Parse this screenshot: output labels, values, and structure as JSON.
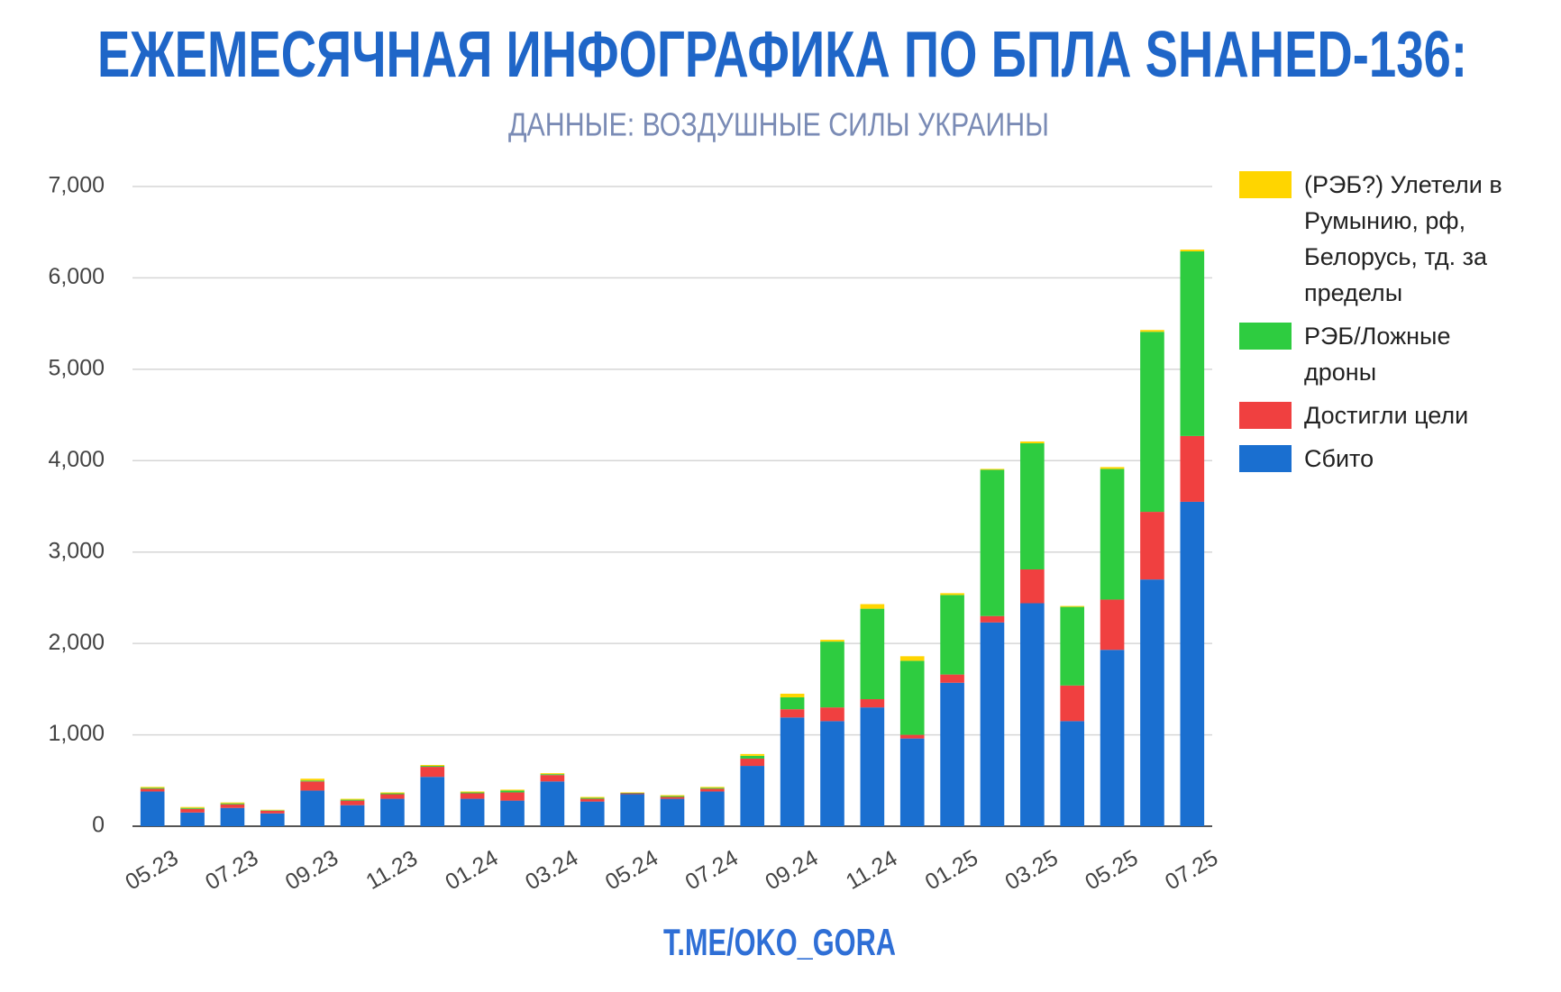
{
  "chart_data": {
    "type": "stacked_bar",
    "title": "ЕЖЕМЕСЯЧНАЯ ИНФОГРАФИКА ПО БПЛА SHAHED-136:",
    "subtitle": "ДАННЫЕ: ВОЗДУШНЫЕ СИЛЫ УКРАИНЫ",
    "footer": "T.ME/OKO_GORA",
    "categories": [
      "05.23",
      null,
      "07.23",
      null,
      "09.23",
      null,
      "11.23",
      null,
      "01.24",
      null,
      "03.24",
      null,
      "05.24",
      null,
      "07.24",
      null,
      "09.24",
      null,
      "11.24",
      null,
      "01.25",
      null,
      "03.25",
      null,
      "05.25",
      null,
      "07.25"
    ],
    "series": [
      {
        "name": "Сбито",
        "color": "#1a6fd0",
        "values": [
          380,
          150,
          200,
          140,
          390,
          230,
          300,
          540,
          300,
          280,
          490,
          270,
          350,
          300,
          380,
          660,
          1190,
          1150,
          1300,
          960,
          1570,
          2230,
          2440,
          1150,
          1930,
          2700,
          3550
        ]
      },
      {
        "name": "Достигли цели",
        "color": "#f04040",
        "values": [
          30,
          40,
          40,
          30,
          100,
          50,
          50,
          110,
          60,
          90,
          70,
          30,
          10,
          20,
          30,
          80,
          90,
          150,
          90,
          40,
          90,
          70,
          370,
          390,
          550,
          740,
          720
        ]
      },
      {
        "name": "РЭБ/Ложные дроны",
        "color": "#2ecc40",
        "values": [
          10,
          10,
          10,
          5,
          10,
          10,
          10,
          10,
          10,
          20,
          10,
          10,
          5,
          10,
          10,
          30,
          130,
          720,
          990,
          810,
          870,
          1600,
          1380,
          860,
          1430,
          1970,
          2020
        ]
      },
      {
        "name": "(РЭБ?) Улетели в Румынию, рф, Белорусь, тд. за пределы",
        "color": "#ffd500",
        "values": [
          10,
          10,
          10,
          5,
          20,
          10,
          10,
          10,
          10,
          10,
          10,
          10,
          5,
          10,
          10,
          20,
          40,
          20,
          50,
          50,
          20,
          10,
          20,
          10,
          20,
          20,
          20
        ]
      }
    ],
    "ylim": [
      0,
      7000
    ],
    "yticks": [
      0,
      {
        "value": 1000,
        "label": "1,000"
      },
      {
        "value": 2000,
        "label": "2,000"
      },
      {
        "value": 3000,
        "label": "3,000"
      },
      {
        "value": 4000,
        "label": "4,000"
      },
      {
        "value": 5000,
        "label": "5,000"
      },
      {
        "value": 6000,
        "label": "6,000"
      },
      {
        "value": 7000,
        "label": "7,000"
      }
    ],
    "grid": true,
    "legend": "right"
  }
}
